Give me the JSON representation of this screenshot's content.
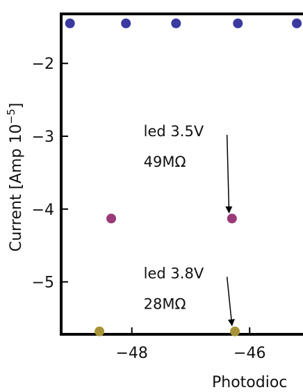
{
  "chart_data": {
    "type": "scatter",
    "title": "",
    "xlabel": "Photodioc",
    "ylabel": "Current [Amp 10",
    "ylabel_exponent": "−5",
    "ylabel_suffix": "]",
    "xlim": [
      -49.2,
      -45.0
    ],
    "ylim": [
      -5.72,
      -1.32
    ],
    "x_ticks": [
      {
        "value": -48,
        "label": "−48"
      },
      {
        "value": -46,
        "label": "−46"
      }
    ],
    "y_ticks": [
      {
        "value": -2,
        "label": "−2"
      },
      {
        "value": -3,
        "label": "−3"
      },
      {
        "value": -4,
        "label": "−4"
      },
      {
        "value": -5,
        "label": "−5"
      }
    ],
    "grid": false,
    "series": [
      {
        "color": "#3a3aa0",
        "points": [
          {
            "x": -49.05,
            "y": -1.45
          },
          {
            "x": -48.1,
            "y": -1.45
          },
          {
            "x": -47.25,
            "y": -1.45
          },
          {
            "x": -46.2,
            "y": -1.45
          },
          {
            "x": -45.2,
            "y": -1.45
          }
        ]
      },
      {
        "color": "#9a3a78",
        "points": [
          {
            "x": -48.35,
            "y": -4.13
          },
          {
            "x": -46.3,
            "y": -4.13
          }
        ]
      },
      {
        "color": "#a89438",
        "points": [
          {
            "x": -48.55,
            "y": -5.68
          },
          {
            "x": -46.25,
            "y": -5.68
          }
        ]
      }
    ],
    "annotations": [
      {
        "lines": [
          "led 3.5V",
          "49MΩ"
        ],
        "x": -47.8,
        "y": -3.0,
        "arrow_to": {
          "x": -46.35,
          "y": -4.05
        }
      },
      {
        "lines": [
          "led 3.8V",
          "28MΩ"
        ],
        "x": -47.8,
        "y": -4.95,
        "arrow_to": {
          "x": -46.3,
          "y": -5.6
        }
      }
    ]
  }
}
